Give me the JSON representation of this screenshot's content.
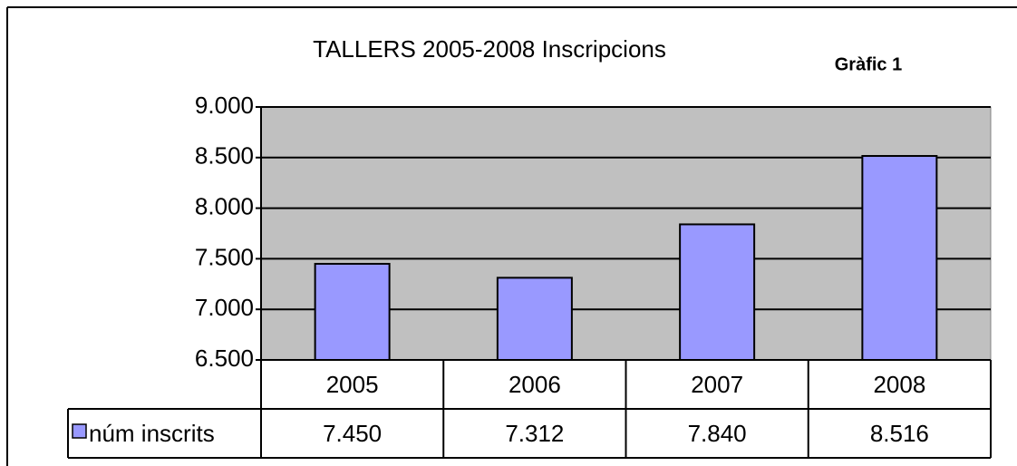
{
  "chart_data": {
    "type": "bar",
    "title": "TALLERS 2005-2008  Inscripcions",
    "annotation": "Gràfic 1",
    "categories": [
      "2005",
      "2006",
      "2007",
      "2008"
    ],
    "series": [
      {
        "name": "núm inscrits",
        "color": "#9999ff",
        "values": [
          7450,
          7312,
          7840,
          8516
        ],
        "value_labels": [
          "7.450",
          "7.312",
          "7.840",
          "8.516"
        ]
      }
    ],
    "ylim": [
      6500,
      9000
    ],
    "yticks": [
      {
        "value": 6500,
        "label": "6.500"
      },
      {
        "value": 7000,
        "label": "7.000"
      },
      {
        "value": 7500,
        "label": "7.500"
      },
      {
        "value": 8000,
        "label": "8.000"
      },
      {
        "value": 8500,
        "label": "8.500"
      },
      {
        "value": 9000,
        "label": "9.000"
      }
    ],
    "grid": true,
    "plot_background": "#c0c0c0"
  }
}
